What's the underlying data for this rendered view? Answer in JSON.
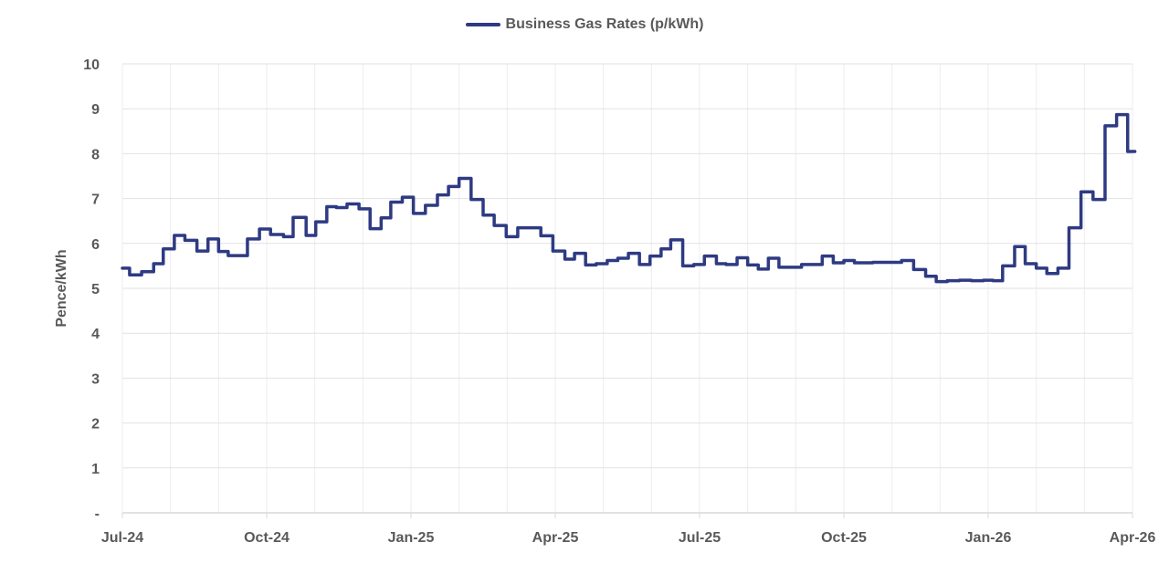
{
  "chart_data": {
    "type": "line",
    "title": "",
    "legend": [
      {
        "name": "Business Gas Rates (p/kWh)",
        "color": "#2E3A82"
      }
    ],
    "legend_position": "top",
    "xlabel": "",
    "ylabel": "Pence/kWh",
    "ylim": [
      0,
      10
    ],
    "yticks": [
      "-",
      "1",
      "2",
      "3",
      "4",
      "5",
      "6",
      "7",
      "8",
      "9",
      "10"
    ],
    "xticks": [
      "Jul-24",
      "Oct-24",
      "Jan-25",
      "Apr-25",
      "Jul-25",
      "Oct-25",
      "Jan-26",
      "Apr-26"
    ],
    "grid": {
      "horizontal": true,
      "vertical": true,
      "vertical_interval": "monthly"
    },
    "step": true,
    "series": [
      {
        "name": "Business Gas Rates (p/kWh)",
        "color": "#2E3A82",
        "points": [
          {
            "month": 0.0,
            "value": 5.45
          },
          {
            "month": 0.15,
            "value": 5.3
          },
          {
            "month": 0.4,
            "value": 5.37
          },
          {
            "month": 0.65,
            "value": 5.55
          },
          {
            "month": 0.85,
            "value": 5.88
          },
          {
            "month": 1.08,
            "value": 6.18
          },
          {
            "month": 1.3,
            "value": 6.07
          },
          {
            "month": 1.55,
            "value": 5.83
          },
          {
            "month": 1.78,
            "value": 6.1
          },
          {
            "month": 2.0,
            "value": 5.82
          },
          {
            "month": 2.2,
            "value": 5.73
          },
          {
            "month": 2.6,
            "value": 6.1
          },
          {
            "month": 2.85,
            "value": 6.32
          },
          {
            "month": 3.08,
            "value": 6.2
          },
          {
            "month": 3.35,
            "value": 6.15
          },
          {
            "month": 3.55,
            "value": 6.58
          },
          {
            "month": 3.82,
            "value": 6.18
          },
          {
            "month": 4.02,
            "value": 6.48
          },
          {
            "month": 4.25,
            "value": 6.82
          },
          {
            "month": 4.45,
            "value": 6.8
          },
          {
            "month": 4.67,
            "value": 6.88
          },
          {
            "month": 4.92,
            "value": 6.77
          },
          {
            "month": 5.15,
            "value": 6.33
          },
          {
            "month": 5.38,
            "value": 6.57
          },
          {
            "month": 5.58,
            "value": 6.92
          },
          {
            "month": 5.82,
            "value": 7.03
          },
          {
            "month": 6.05,
            "value": 6.67
          },
          {
            "month": 6.3,
            "value": 6.85
          },
          {
            "month": 6.55,
            "value": 7.08
          },
          {
            "month": 6.78,
            "value": 7.27
          },
          {
            "month": 7.0,
            "value": 7.45
          },
          {
            "month": 7.25,
            "value": 6.98
          },
          {
            "month": 7.5,
            "value": 6.63
          },
          {
            "month": 7.73,
            "value": 6.4
          },
          {
            "month": 7.98,
            "value": 6.15
          },
          {
            "month": 8.22,
            "value": 6.35
          },
          {
            "month": 8.7,
            "value": 6.17
          },
          {
            "month": 8.95,
            "value": 5.83
          },
          {
            "month": 9.2,
            "value": 5.65
          },
          {
            "month": 9.4,
            "value": 5.78
          },
          {
            "month": 9.63,
            "value": 5.52
          },
          {
            "month": 9.85,
            "value": 5.55
          },
          {
            "month": 10.08,
            "value": 5.62
          },
          {
            "month": 10.3,
            "value": 5.67
          },
          {
            "month": 10.52,
            "value": 5.78
          },
          {
            "month": 10.75,
            "value": 5.53
          },
          {
            "month": 10.97,
            "value": 5.72
          },
          {
            "month": 11.2,
            "value": 5.88
          },
          {
            "month": 11.4,
            "value": 6.08
          },
          {
            "month": 11.65,
            "value": 5.5
          },
          {
            "month": 11.88,
            "value": 5.53
          },
          {
            "month": 12.1,
            "value": 5.72
          },
          {
            "month": 12.35,
            "value": 5.55
          },
          {
            "month": 12.55,
            "value": 5.53
          },
          {
            "month": 12.78,
            "value": 5.68
          },
          {
            "month": 13.0,
            "value": 5.52
          },
          {
            "month": 13.22,
            "value": 5.43
          },
          {
            "month": 13.43,
            "value": 5.67
          },
          {
            "month": 13.65,
            "value": 5.47
          },
          {
            "month": 14.12,
            "value": 5.53
          },
          {
            "month": 14.55,
            "value": 5.72
          },
          {
            "month": 14.78,
            "value": 5.57
          },
          {
            "month": 15.0,
            "value": 5.62
          },
          {
            "month": 15.22,
            "value": 5.57
          },
          {
            "month": 15.6,
            "value": 5.58
          },
          {
            "month": 15.97,
            "value": 5.58
          },
          {
            "month": 16.2,
            "value": 5.62
          },
          {
            "month": 16.45,
            "value": 5.42
          },
          {
            "month": 16.7,
            "value": 5.27
          },
          {
            "month": 16.92,
            "value": 5.15
          },
          {
            "month": 17.15,
            "value": 5.17
          },
          {
            "month": 17.4,
            "value": 5.18
          },
          {
            "month": 17.65,
            "value": 5.17
          },
          {
            "month": 17.9,
            "value": 5.18
          },
          {
            "month": 18.1,
            "value": 5.17
          },
          {
            "month": 18.3,
            "value": 5.5
          },
          {
            "month": 18.55,
            "value": 5.93
          },
          {
            "month": 18.77,
            "value": 5.55
          },
          {
            "month": 19.0,
            "value": 5.45
          },
          {
            "month": 19.22,
            "value": 5.33
          },
          {
            "month": 19.45,
            "value": 5.45
          },
          {
            "month": 19.68,
            "value": 6.35
          },
          {
            "month": 19.93,
            "value": 7.15
          },
          {
            "month": 20.18,
            "value": 6.98
          },
          {
            "month": 20.43,
            "value": 8.62
          },
          {
            "month": 20.67,
            "value": 8.87
          },
          {
            "month": 20.9,
            "value": 8.05
          },
          {
            "month": 21.05,
            "value": 8.05
          }
        ]
      }
    ]
  }
}
